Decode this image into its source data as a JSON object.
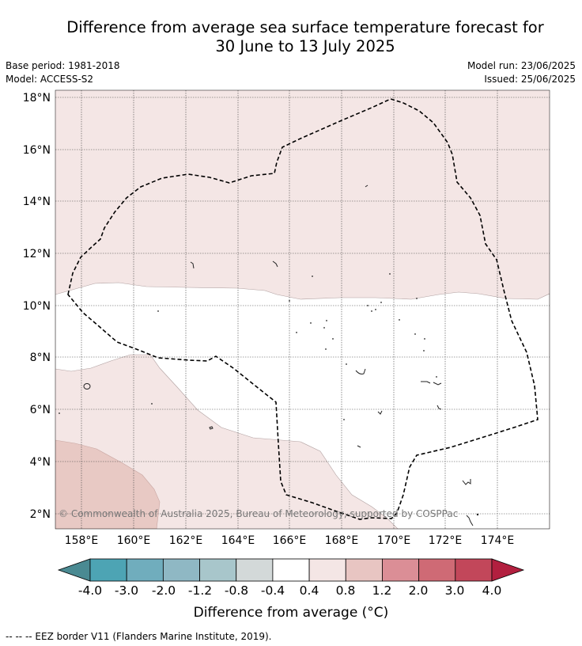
{
  "title_line1": "Difference from average sea surface temperature forecast for",
  "title_line2": "30 June to 13 July 2025",
  "meta": {
    "base_period": "Base period: 1981-2018",
    "model": "Model: ACCESS-S2",
    "model_run": "Model run: 23/06/2025",
    "issued": "Issued: 25/06/2025"
  },
  "map": {
    "lat_labels": [
      "18°N",
      "16°N",
      "14°N",
      "12°N",
      "10°N",
      "8°N",
      "6°N",
      "4°N",
      "2°N"
    ],
    "lon_labels": [
      "158°E",
      "160°E",
      "162°E",
      "164°E",
      "166°E",
      "168°E",
      "170°E",
      "172°E",
      "174°E"
    ],
    "copyright": "© Commonwealth of Australia 2025, Bureau of Meteorology, supported by COSPPac"
  },
  "colorbar": {
    "labels": [
      "-4.0",
      "-3.0",
      "-2.0",
      "-1.2",
      "-0.8",
      "-0.4",
      "0.4",
      "0.8",
      "1.2",
      "2.0",
      "3.0",
      "4.0"
    ],
    "colors": [
      "#4a8a92",
      "#4da4b4",
      "#70adbd",
      "#8fb8c4",
      "#a8c6cb",
      "#d3d9d9",
      "#ffffff",
      "#f4e6e5",
      "#e8c5c2",
      "#db8e96",
      "#cf6a75",
      "#c2475a",
      "#b21f3f"
    ],
    "title": "Difference from average (°C)"
  },
  "footnote": "--  --  -- EEZ border V11 (Flanders Marine Institute, 2019)."
}
